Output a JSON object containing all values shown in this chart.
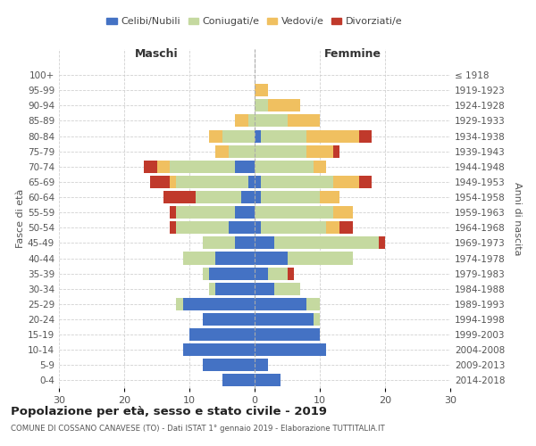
{
  "age_groups": [
    "0-4",
    "5-9",
    "10-14",
    "15-19",
    "20-24",
    "25-29",
    "30-34",
    "35-39",
    "40-44",
    "45-49",
    "50-54",
    "55-59",
    "60-64",
    "65-69",
    "70-74",
    "75-79",
    "80-84",
    "85-89",
    "90-94",
    "95-99",
    "100+"
  ],
  "birth_years": [
    "2014-2018",
    "2009-2013",
    "2004-2008",
    "1999-2003",
    "1994-1998",
    "1989-1993",
    "1984-1988",
    "1979-1983",
    "1974-1978",
    "1969-1973",
    "1964-1968",
    "1959-1963",
    "1954-1958",
    "1949-1953",
    "1944-1948",
    "1939-1943",
    "1934-1938",
    "1929-1933",
    "1924-1928",
    "1919-1923",
    "≤ 1918"
  ],
  "colors": {
    "celibi": "#4472c4",
    "coniugati": "#c5d9a0",
    "vedovi": "#f0c060",
    "divorziati": "#c0392b"
  },
  "males": {
    "celibi": [
      5,
      8,
      11,
      10,
      8,
      11,
      6,
      7,
      6,
      3,
      4,
      3,
      2,
      1,
      3,
      0,
      0,
      0,
      0,
      0,
      0
    ],
    "coniugati": [
      0,
      0,
      0,
      0,
      0,
      1,
      1,
      1,
      5,
      5,
      8,
      9,
      7,
      11,
      10,
      4,
      5,
      1,
      0,
      0,
      0
    ],
    "vedovi": [
      0,
      0,
      0,
      0,
      0,
      0,
      0,
      0,
      0,
      0,
      0,
      0,
      0,
      1,
      2,
      2,
      2,
      2,
      0,
      0,
      0
    ],
    "divorziati": [
      0,
      0,
      0,
      0,
      0,
      0,
      0,
      0,
      0,
      0,
      1,
      1,
      5,
      3,
      2,
      0,
      0,
      0,
      0,
      0,
      0
    ]
  },
  "females": {
    "nubili": [
      4,
      2,
      11,
      10,
      9,
      8,
      3,
      2,
      5,
      3,
      1,
      0,
      1,
      1,
      0,
      0,
      1,
      0,
      0,
      0,
      0
    ],
    "coniugate": [
      0,
      0,
      0,
      0,
      1,
      2,
      4,
      3,
      10,
      16,
      10,
      12,
      9,
      11,
      9,
      8,
      7,
      5,
      2,
      0,
      0
    ],
    "vedove": [
      0,
      0,
      0,
      0,
      0,
      0,
      0,
      0,
      0,
      0,
      2,
      3,
      3,
      4,
      2,
      4,
      8,
      5,
      5,
      2,
      0
    ],
    "divorziate": [
      0,
      0,
      0,
      0,
      0,
      0,
      0,
      1,
      0,
      1,
      2,
      0,
      0,
      2,
      0,
      1,
      2,
      0,
      0,
      0,
      0
    ]
  },
  "xlim": 30,
  "title": "Popolazione per età, sesso e stato civile - 2019",
  "subtitle": "COMUNE DI COSSANO CANAVESE (TO) - Dati ISTAT 1° gennaio 2019 - Elaborazione TUTTITALIA.IT",
  "xlabel_left": "Maschi",
  "xlabel_right": "Femmine",
  "ylabel_left": "Fasce di età",
  "ylabel_right": "Anni di nascita",
  "legend_labels": [
    "Celibi/Nubili",
    "Coniugati/e",
    "Vedovi/e",
    "Divorziati/e"
  ],
  "bg_color": "#ffffff",
  "grid_color": "#cccccc"
}
